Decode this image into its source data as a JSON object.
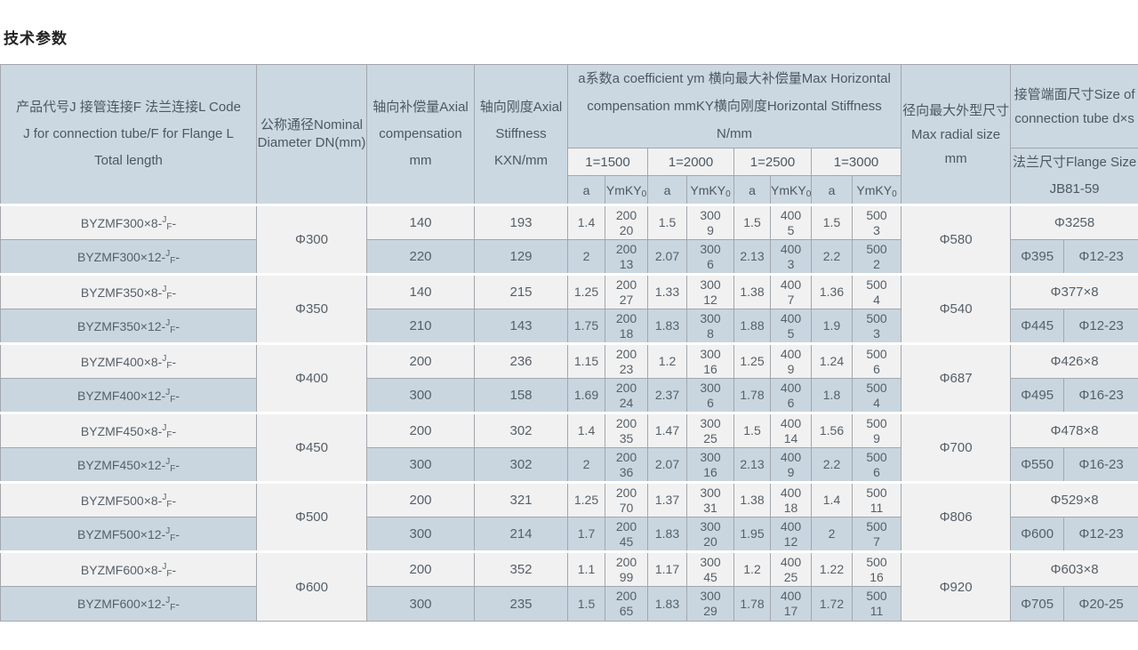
{
  "title": "技术参数",
  "colors": {
    "header_bg": "#ccd8e1",
    "row_light_bg": "#f1f1f1",
    "row_blue_bg": "#c9d6e0",
    "border": "#a2a7ac",
    "text": "#565f68"
  },
  "table": {
    "headers": {
      "product": "产品代号J 接管连接F 法兰连接L Code J for connection tube/F for Flange L Total length",
      "dn": "公称通径Nominal Diameter DN(mm)",
      "axial_comp": "轴向补偿量Axial compensation mm",
      "axial_stiff": "轴向刚度Axial Stiffness KXN/mm",
      "group": "a系数a coefficient ym 横向最大补偿量Max Horizontal compensation mmKY横向刚度Horizontal Stiffness N/mm",
      "subgroups": [
        "1=1500",
        "1=2000",
        "1=2500",
        "1=3000"
      ],
      "a_label": "a",
      "ym_label_base": "YmKY",
      "ym_label_sub": "0",
      "radial": "径向最大外型尺寸 Max radial size mm",
      "tube": "接管端面尺寸Size of connection tube d×s",
      "flange": "法兰尺寸Flange Size JB81-59"
    },
    "groups": [
      {
        "dn": "Φ300",
        "radial": "Φ580",
        "tube": "Φ3258",
        "flange_d": "Φ395",
        "flange_holes": "Φ12-23",
        "rows": [
          {
            "code": {
              "base": "BYZMF300×8-",
              "sup": "J",
              "sub": "F",
              "tail": "-"
            },
            "comp": "140",
            "stiff": "193",
            "vals": [
              [
                "1.4",
                "200",
                "20"
              ],
              [
                "1.5",
                "300",
                "9"
              ],
              [
                "1.5",
                "400",
                "5"
              ],
              [
                "1.5",
                "500",
                "3"
              ]
            ]
          },
          {
            "code": {
              "base": "BYZMF300×12-",
              "sup": "J",
              "sub": "F",
              "tail": "-"
            },
            "comp": "220",
            "stiff": "129",
            "vals": [
              [
                "2",
                "200",
                "13"
              ],
              [
                "2.07",
                "300",
                "6"
              ],
              [
                "2.13",
                "400",
                "3"
              ],
              [
                "2.2",
                "500",
                "2"
              ]
            ]
          }
        ]
      },
      {
        "dn": "Φ350",
        "radial": "Φ540",
        "tube": "Φ377×8",
        "flange_d": "Φ445",
        "flange_holes": "Φ12-23",
        "rows": [
          {
            "code": {
              "base": "BYZMF350×8-",
              "sup": "J",
              "sub": "F",
              "tail": "-"
            },
            "comp": "140",
            "stiff": "215",
            "vals": [
              [
                "1.25",
                "200",
                "27"
              ],
              [
                "1.33",
                "300",
                "12"
              ],
              [
                "1.38",
                "400",
                "7"
              ],
              [
                "1.36",
                "500",
                "4"
              ]
            ]
          },
          {
            "code": {
              "base": "BYZMF350×12-",
              "sup": "J",
              "sub": "F",
              "tail": "-"
            },
            "comp": "210",
            "stiff": "143",
            "vals": [
              [
                "1.75",
                "200",
                "18"
              ],
              [
                "1.83",
                "300",
                "8"
              ],
              [
                "1.88",
                "400",
                "5"
              ],
              [
                "1.9",
                "500",
                "3"
              ]
            ]
          }
        ]
      },
      {
        "dn": "Φ400",
        "radial": "Φ687",
        "tube": "Φ426×8",
        "flange_d": "Φ495",
        "flange_holes": "Φ16-23",
        "rows": [
          {
            "code": {
              "base": "BYZMF400×8-",
              "sup": "J",
              "sub": "F",
              "tail": "-"
            },
            "comp": "200",
            "stiff": "236",
            "vals": [
              [
                "1.15",
                "200",
                "23"
              ],
              [
                "1.2",
                "300",
                "16"
              ],
              [
                "1.25",
                "400",
                "9"
              ],
              [
                "1.24",
                "500",
                "6"
              ]
            ]
          },
          {
            "code": {
              "base": "BYZMF400×12-",
              "sup": "J",
              "sub": "F",
              "tail": "-"
            },
            "comp": "300",
            "stiff": "158",
            "vals": [
              [
                "1.69",
                "200",
                "24"
              ],
              [
                "2.37",
                "300",
                "6"
              ],
              [
                "1.78",
                "400",
                "6"
              ],
              [
                "1.8",
                "500",
                "4"
              ]
            ]
          }
        ]
      },
      {
        "dn": "Φ450",
        "radial": "Φ700",
        "tube": "Φ478×8",
        "flange_d": "Φ550",
        "flange_holes": "Φ16-23",
        "rows": [
          {
            "code": {
              "base": "BYZMF450×8-",
              "sup": "J",
              "sub": "F",
              "tail": "-"
            },
            "comp": "200",
            "stiff": "302",
            "vals": [
              [
                "1.4",
                "200",
                "35"
              ],
              [
                "1.47",
                "300",
                "25"
              ],
              [
                "1.5",
                "400",
                "14"
              ],
              [
                "1.56",
                "500",
                "9"
              ]
            ]
          },
          {
            "code": {
              "base": "BYZMF450×12-",
              "sup": "J",
              "sub": "F",
              "tail": "-"
            },
            "comp": "300",
            "stiff": "302",
            "vals": [
              [
                "2",
                "200",
                "36"
              ],
              [
                "2.07",
                "300",
                "16"
              ],
              [
                "2.13",
                "400",
                "9"
              ],
              [
                "2.2",
                "500",
                "6"
              ]
            ]
          }
        ]
      },
      {
        "dn": "Φ500",
        "radial": "Φ806",
        "tube": "Φ529×8",
        "flange_d": "Φ600",
        "flange_holes": "Φ12-23",
        "rows": [
          {
            "code": {
              "base": "BYZMF500×8-",
              "sup": "J",
              "sub": "F",
              "tail": "-"
            },
            "comp": "200",
            "stiff": "321",
            "vals": [
              [
                "1.25",
                "200",
                "70"
              ],
              [
                "1.37",
                "300",
                "31"
              ],
              [
                "1.38",
                "400",
                "18"
              ],
              [
                "1.4",
                "500",
                "11"
              ]
            ]
          },
          {
            "code": {
              "base": "BYZMF500×12-",
              "sup": "J",
              "sub": "F",
              "tail": "-"
            },
            "comp": "300",
            "stiff": "214",
            "vals": [
              [
                "1.7",
                "200",
                "45"
              ],
              [
                "1.83",
                "300",
                "20"
              ],
              [
                "1.95",
                "400",
                "12"
              ],
              [
                "2",
                "500",
                "7"
              ]
            ]
          }
        ]
      },
      {
        "dn": "Φ600",
        "radial": "Φ920",
        "tube": "Φ603×8",
        "flange_d": "Φ705",
        "flange_holes": "Φ20-25",
        "rows": [
          {
            "code": {
              "base": "BYZMF600×8-",
              "sup": "J",
              "sub": "F",
              "tail": "-"
            },
            "comp": "200",
            "stiff": "352",
            "vals": [
              [
                "1.1",
                "200",
                "99"
              ],
              [
                "1.17",
                "300",
                "45"
              ],
              [
                "1.2",
                "400",
                "25"
              ],
              [
                "1.22",
                "500",
                "16"
              ]
            ]
          },
          {
            "code": {
              "base": "BYZMF600×12-",
              "sup": "J",
              "sub": "F",
              "tail": "-"
            },
            "comp": "300",
            "stiff": "235",
            "vals": [
              [
                "1.5",
                "200",
                "65"
              ],
              [
                "1.83",
                "300",
                "29"
              ],
              [
                "1.78",
                "400",
                "17"
              ],
              [
                "1.72",
                "500",
                "11"
              ]
            ]
          }
        ]
      }
    ]
  }
}
